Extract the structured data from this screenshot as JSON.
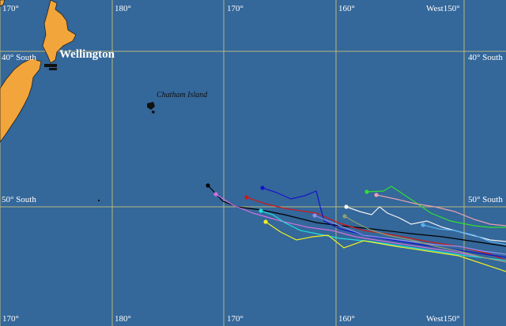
{
  "map": {
    "ocean_color": "#34679a",
    "land_color": "#f2a53a",
    "grid_color": "#b9b77e",
    "longitude_labels_top": [
      "170°",
      "180°",
      "170°",
      "160°",
      "West150°"
    ],
    "longitude_labels_bottom": [
      "170°",
      "180°",
      "170°",
      "160°",
      "West150°"
    ],
    "latitude_labels_left": [
      "40° South",
      "50° South"
    ],
    "latitude_labels_right": [
      "40° South",
      "50° South"
    ],
    "city_label": "Wellington",
    "island_label": "Chatham Island",
    "tracks": [
      {
        "color": "#000000"
      },
      {
        "color": "#d070e0"
      },
      {
        "color": "#d01818"
      },
      {
        "color": "#1414c8"
      },
      {
        "color": "#20e0e0"
      },
      {
        "color": "#f0f020"
      },
      {
        "color": "#f4f4f4"
      },
      {
        "color": "#9090f0"
      },
      {
        "color": "#90a070"
      },
      {
        "color": "#30e030"
      },
      {
        "color": "#e8a0b0"
      },
      {
        "color": "#58b0f0"
      }
    ]
  }
}
